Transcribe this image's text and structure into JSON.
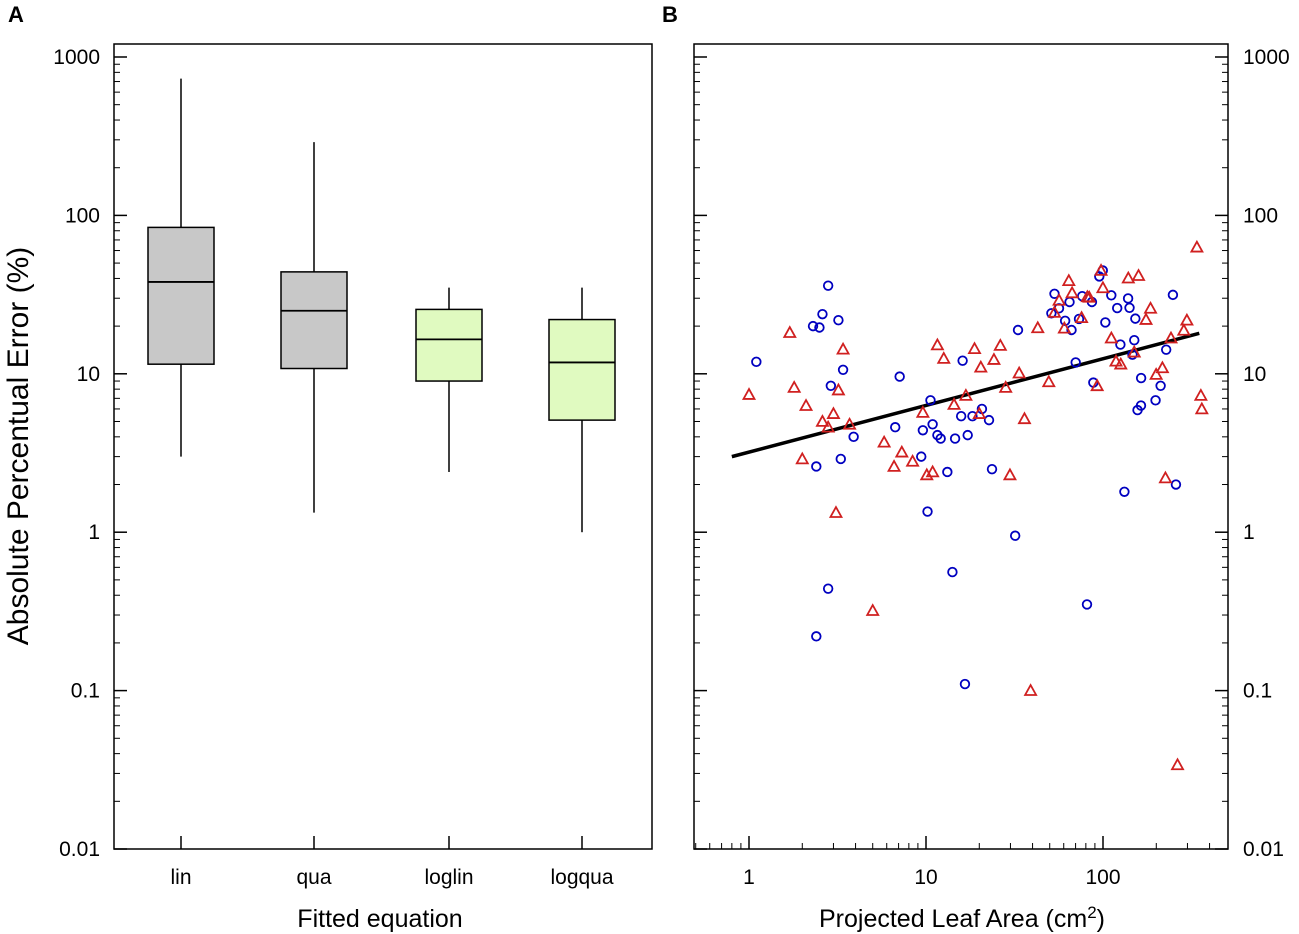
{
  "chart_data": [
    {
      "panel_label": "A",
      "type": "box",
      "xlabel": "Fitted equation",
      "ylabel": "Absolute Percentual Error (%)",
      "yscale": "log",
      "ylim": [
        0.01,
        1000
      ],
      "yticks": [
        0.01,
        0.1,
        1,
        10,
        100,
        1000
      ],
      "ytick_labels": [
        "0.01",
        "0.1",
        "1",
        "10",
        "100",
        "1000"
      ],
      "categories": [
        "lin",
        "qua",
        "loglin",
        "logqua"
      ],
      "boxes": [
        {
          "name": "lin",
          "whisker_low": 3.0,
          "q1": 11.5,
          "median": 38,
          "q3": 84,
          "whisker_high": 730,
          "color": "#c8c8c8"
        },
        {
          "name": "qua",
          "whisker_low": 1.33,
          "q1": 10.8,
          "median": 25,
          "q3": 44,
          "whisker_high": 290,
          "color": "#c8c8c8"
        },
        {
          "name": "loglin",
          "whisker_low": 2.4,
          "q1": 9.0,
          "median": 16.5,
          "q3": 25.5,
          "whisker_high": 35,
          "color": "#e0fac0"
        },
        {
          "name": "logqua",
          "whisker_low": 1.0,
          "q1": 5.1,
          "median": 11.8,
          "q3": 22,
          "whisker_high": 35,
          "color": "#e0fac0"
        }
      ]
    },
    {
      "panel_label": "B",
      "type": "scatter",
      "xlabel": "Projected Leaf Area (cm",
      "xlabel_sup": "2",
      "xlabel_end": ")",
      "xscale": "log",
      "yscale": "log",
      "xlim": [
        0.5,
        450
      ],
      "ylim": [
        0.01,
        1000
      ],
      "xticks": [
        1,
        10,
        100
      ],
      "xtick_labels": [
        "1",
        "10",
        "100"
      ],
      "yticks": [
        0.01,
        0.1,
        1,
        10,
        100,
        1000
      ],
      "ytick_labels": [
        "0.01",
        "0.1",
        "1",
        "10",
        "100",
        "1000"
      ],
      "fit_line": {
        "x": [
          0.8,
          350
        ],
        "y": [
          3.0,
          18
        ],
        "color": "#000000"
      },
      "series": [
        {
          "name": "circles",
          "marker": "circle",
          "color": "#0000c0",
          "points": [
            [
              1.1,
              11.9
            ],
            [
              2.3,
              20
            ],
            [
              2.4,
              2.6
            ],
            [
              2.5,
              19.6
            ],
            [
              2.6,
              23.8
            ],
            [
              2.8,
              36
            ],
            [
              2.9,
              8.4
            ],
            [
              3.2,
              21.8
            ],
            [
              3.3,
              2.9
            ],
            [
              3.4,
              10.6
            ],
            [
              3.9,
              4.0
            ],
            [
              6.7,
              4.6
            ],
            [
              7.1,
              9.6
            ],
            [
              9.4,
              3.0
            ],
            [
              9.6,
              4.4
            ],
            [
              10.2,
              1.35
            ],
            [
              10.6,
              6.8
            ],
            [
              10.9,
              4.8
            ],
            [
              11.6,
              4.1
            ],
            [
              13.2,
              2.4
            ],
            [
              14.6,
              3.9
            ],
            [
              15.8,
              5.4
            ],
            [
              16.1,
              12.1
            ],
            [
              17.2,
              4.1
            ],
            [
              18.3,
              5.4
            ],
            [
              20.7,
              6.0
            ],
            [
              22.7,
              5.1
            ],
            [
              23.6,
              2.5
            ],
            [
              31.9,
              0.95
            ],
            [
              33.1,
              18.9
            ],
            [
              51.1,
              24.1
            ],
            [
              53.2,
              32
            ],
            [
              56.4,
              25.9
            ],
            [
              61.1,
              21.6
            ],
            [
              64.7,
              28.4
            ],
            [
              66.4,
              18.9
            ],
            [
              70.1,
              11.8
            ],
            [
              73.2,
              22.2
            ],
            [
              76.3,
              30.9
            ],
            [
              81.2,
              0.35
            ],
            [
              88.2,
              8.8
            ],
            [
              95.3,
              41.2
            ],
            [
              99.7,
              44.9
            ],
            [
              103.1,
              21.1
            ],
            [
              111.4,
              31.3
            ],
            [
              120.3,
              26.0
            ],
            [
              125.4,
              15.3
            ],
            [
              132.1,
              1.8
            ],
            [
              138.6,
              29.9
            ],
            [
              146.7,
              13.2
            ],
            [
              152.3,
              22.3
            ],
            [
              156.7,
              5.9
            ],
            [
              163.9,
              6.3
            ],
            [
              164.2,
              9.4
            ],
            [
              198.1,
              6.8
            ],
            [
              211.6,
              8.4
            ],
            [
              227.5,
              14.2
            ],
            [
              248.3,
              31.5
            ],
            [
              258.3,
              2.0
            ],
            [
              2.8,
              0.44
            ],
            [
              2.4,
              0.22
            ],
            [
              14.1,
              0.56
            ],
            [
              16.6,
              0.11
            ],
            [
              12.1,
              3.9
            ],
            [
              86.6,
              28.4
            ],
            [
              141.2,
              26.1
            ],
            [
              150.2,
              16.3
            ]
          ]
        },
        {
          "name": "triangles",
          "marker": "triangle",
          "color": "#d02020",
          "points": [
            [
              1.0,
              7.4
            ],
            [
              1.7,
              18.2
            ],
            [
              1.8,
              8.2
            ],
            [
              2.0,
              2.9
            ],
            [
              2.1,
              6.3
            ],
            [
              2.6,
              5.0
            ],
            [
              2.8,
              4.6
            ],
            [
              3.0,
              5.6
            ],
            [
              3.1,
              1.33
            ],
            [
              3.2,
              7.9
            ],
            [
              3.4,
              14.3
            ],
            [
              3.7,
              4.8
            ],
            [
              5.0,
              0.32
            ],
            [
              5.8,
              3.7
            ],
            [
              6.6,
              2.6
            ],
            [
              7.3,
              3.2
            ],
            [
              8.4,
              2.8
            ],
            [
              9.6,
              5.7
            ],
            [
              10.1,
              2.3
            ],
            [
              10.9,
              2.4
            ],
            [
              11.6,
              15.2
            ],
            [
              12.6,
              12.5
            ],
            [
              14.4,
              6.4
            ],
            [
              16.8,
              7.3
            ],
            [
              18.8,
              14.4
            ],
            [
              20.0,
              5.6
            ],
            [
              24.2,
              12.3
            ],
            [
              26.3,
              15.1
            ],
            [
              28.2,
              8.2
            ],
            [
              29.8,
              2.3
            ],
            [
              33.6,
              10.1
            ],
            [
              36.0,
              5.2
            ],
            [
              39.0,
              0.1
            ],
            [
              42.8,
              19.5
            ],
            [
              49.4,
              8.9
            ],
            [
              53.2,
              24.4
            ],
            [
              56.5,
              29.1
            ],
            [
              60.5,
              19.4
            ],
            [
              64.1,
              38.7
            ],
            [
              66.9,
              32.4
            ],
            [
              75.7,
              22.6
            ],
            [
              81.6,
              30.6
            ],
            [
              83.6,
              30.4
            ],
            [
              92.7,
              8.4
            ],
            [
              97.5,
              44.9
            ],
            [
              99.9,
              34.9
            ],
            [
              111.5,
              16.8
            ],
            [
              118.4,
              12.0
            ],
            [
              126.0,
              11.5
            ],
            [
              139.0,
              40.2
            ],
            [
              150.1,
              13.7
            ],
            [
              158.8,
              41.7
            ],
            [
              185.6,
              25.9
            ],
            [
              199.6,
              9.9
            ],
            [
              216.6,
              10.9
            ],
            [
              225.3,
              2.2
            ],
            [
              242.2,
              16.8
            ],
            [
              286.1,
              18.8
            ],
            [
              297.8,
              21.8
            ],
            [
              339.2,
              63.0
            ],
            [
              357.2,
              7.3
            ],
            [
              361.7,
              6.0
            ],
            [
              263.7,
              0.034
            ],
            [
              20.4,
              11.0
            ],
            [
              175.0,
              22.0
            ]
          ]
        }
      ]
    }
  ]
}
